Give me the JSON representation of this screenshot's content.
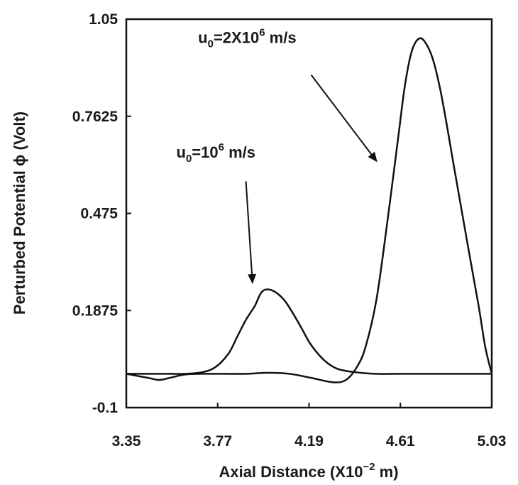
{
  "chart_data": {
    "type": "line",
    "xlabel": "Axial Distance (X10",
    "xlabel_exp": "−2",
    "xlabel_suffix": " m)",
    "ylabel": "Perturbed  Potential ϕ (Volt)",
    "xlim": [
      3.35,
      5.03
    ],
    "ylim": [
      -0.1,
      1.05
    ],
    "x_ticks": [
      "3.35",
      "3.77",
      "4.19",
      "4.61",
      "5.03"
    ],
    "y_ticks": [
      "1.05",
      "0.7625",
      "0.475",
      "0.1875",
      "-0.1"
    ],
    "grid": false,
    "series": [
      {
        "id": "u0_1e6",
        "x": [
          3.35,
          3.45,
          3.55,
          3.62,
          3.7,
          3.76,
          3.82,
          3.86,
          3.9,
          3.94,
          3.97,
          4.0,
          4.04,
          4.08,
          4.12,
          4.16,
          4.2,
          4.26,
          4.32,
          4.4,
          4.5,
          4.61,
          4.75,
          4.9,
          5.03
        ],
        "y": [
          0.0,
          0.0,
          0.0,
          0.0,
          0.005,
          0.02,
          0.06,
          0.11,
          0.16,
          0.2,
          0.24,
          0.25,
          0.24,
          0.215,
          0.175,
          0.13,
          0.085,
          0.04,
          0.015,
          0.005,
          0.0,
          0.0,
          0.0,
          0.0,
          0.0
        ]
      },
      {
        "id": "u0_2e6",
        "x": [
          3.35,
          3.45,
          3.5,
          3.55,
          3.62,
          3.7,
          3.8,
          3.9,
          4.0,
          4.1,
          4.2,
          4.3,
          4.36,
          4.41,
          4.45,
          4.5,
          4.55,
          4.6,
          4.63,
          4.66,
          4.69,
          4.72,
          4.76,
          4.8,
          4.86,
          4.92,
          4.97,
          5.0,
          5.03
        ],
        "y": [
          0.0,
          -0.012,
          -0.018,
          -0.012,
          -0.002,
          0.0,
          0.0,
          0.0,
          0.003,
          0.0,
          -0.012,
          -0.025,
          -0.018,
          0.02,
          0.08,
          0.22,
          0.45,
          0.7,
          0.85,
          0.95,
          0.99,
          0.985,
          0.93,
          0.82,
          0.6,
          0.38,
          0.2,
          0.08,
          0.0
        ]
      }
    ],
    "annotations": [
      {
        "id": "a1",
        "prefix": "u",
        "sub": "0",
        "mid": "=10",
        "sup": "6",
        "suffix": " m/s",
        "text_at": [
          3.58,
          0.64
        ],
        "arrow_from": [
          3.9,
          0.57
        ],
        "arrow_to": [
          3.93,
          0.27
        ]
      },
      {
        "id": "a2",
        "prefix": "u",
        "sub": "0",
        "mid": "=2X10",
        "sup": "6",
        "suffix": " m/s",
        "text_at": [
          3.68,
          0.98
        ],
        "arrow_from": [
          4.2,
          0.885
        ],
        "arrow_to": [
          4.5,
          0.63
        ]
      }
    ]
  }
}
